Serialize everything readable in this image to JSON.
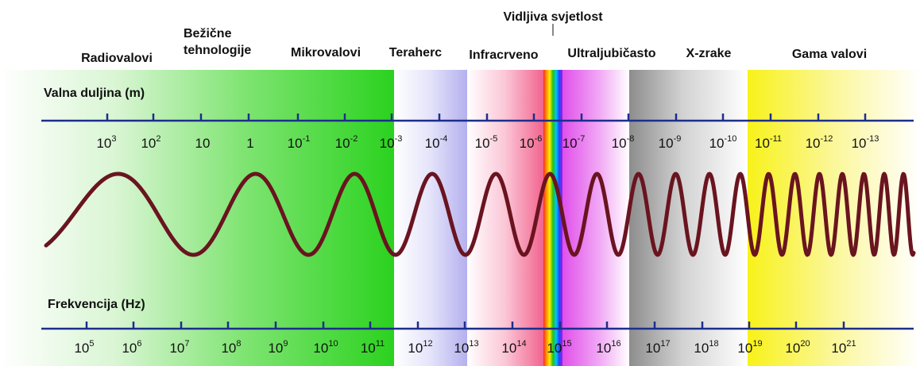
{
  "title": "Vidljiva svjetlost",
  "colors": {
    "axis": "#1c2e8c",
    "wave": "#6a1420",
    "radio": "#2bd21f",
    "terahertz": "#c9c7f2",
    "infrared": "#f57aa0",
    "uv": "#e76af0",
    "xray": "#9a9a9a",
    "gamma": "#f5f21a"
  },
  "bands": [
    {
      "key": "radio",
      "label_lines": [
        "Radiovalovi"
      ]
    },
    {
      "key": "wireless",
      "label_lines": [
        "Bežične",
        "tehnologije"
      ]
    },
    {
      "key": "microwave",
      "label_lines": [
        "Mikrovalovi"
      ]
    },
    {
      "key": "terahertz",
      "label_lines": [
        "Teraherc"
      ]
    },
    {
      "key": "infrared",
      "label_lines": [
        "Infracrveno"
      ]
    },
    {
      "key": "uv",
      "label_lines": [
        "Ultraljubičasto"
      ]
    },
    {
      "key": "xray",
      "label_lines": [
        "X-zrake"
      ]
    },
    {
      "key": "gamma",
      "label_lines": [
        "Gama valovi"
      ]
    }
  ],
  "wavelength_axis": {
    "title": "Valna duljina (m)",
    "ticks": [
      {
        "base": "10",
        "exp": "3"
      },
      {
        "base": "10",
        "exp": "2"
      },
      {
        "base": "10",
        "exp": ""
      },
      {
        "base": "1",
        "exp": ""
      },
      {
        "base": "10",
        "exp": "-1"
      },
      {
        "base": "10",
        "exp": "-2"
      },
      {
        "base": "10",
        "exp": "-3"
      },
      {
        "base": "10",
        "exp": "-4"
      },
      {
        "base": "10",
        "exp": "-5"
      },
      {
        "base": "10",
        "exp": "-6"
      },
      {
        "base": "10",
        "exp": "-7"
      },
      {
        "base": "10",
        "exp": "-8"
      },
      {
        "base": "10",
        "exp": "-9"
      },
      {
        "base": "10",
        "exp": "-10"
      },
      {
        "base": "10",
        "exp": "-11"
      },
      {
        "base": "10",
        "exp": "-12"
      },
      {
        "base": "10",
        "exp": "-13"
      }
    ]
  },
  "frequency_axis": {
    "title": "Frekvencija (Hz)",
    "ticks": [
      {
        "base": "10",
        "exp": "5"
      },
      {
        "base": "10",
        "exp": "6"
      },
      {
        "base": "10",
        "exp": "7"
      },
      {
        "base": "10",
        "exp": "8"
      },
      {
        "base": "10",
        "exp": "9"
      },
      {
        "base": "10",
        "exp": "10"
      },
      {
        "base": "10",
        "exp": "11"
      },
      {
        "base": "10",
        "exp": "12"
      },
      {
        "base": "10",
        "exp": "13"
      },
      {
        "base": "10",
        "exp": "14"
      },
      {
        "base": "10",
        "exp": "15"
      },
      {
        "base": "10",
        "exp": "16"
      },
      {
        "base": "10",
        "exp": "17"
      },
      {
        "base": "10",
        "exp": "18"
      },
      {
        "base": "10",
        "exp": "19"
      },
      {
        "base": "10",
        "exp": "20"
      },
      {
        "base": "10",
        "exp": "21"
      }
    ]
  }
}
